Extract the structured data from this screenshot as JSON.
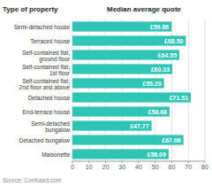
{
  "chart_data": {
    "type": "bar",
    "orientation": "horizontal",
    "y_label": "Type of property",
    "x_label": "Median average quote",
    "annotations": [
      "Source: Confused.com"
    ],
    "categories": [
      "Semi-detached house",
      "Terraced house",
      "Self-contained flat,\nground floor",
      "Self-contained flat,\n1st floor",
      "Self-contained flat,\n2nd floor and above",
      "Detached house",
      "End-terrace house",
      "Semi-detached\nbungalow",
      "Detached bungalow",
      "Maisonette"
    ],
    "values": [
      59.86,
      68.5,
      64.55,
      60.33,
      55.29,
      71.51,
      58.68,
      47.77,
      67.06,
      58.09
    ],
    "value_labels": [
      "£59.86",
      "£68.50",
      "£64.55",
      "£60.33",
      "£55.29",
      "£71.51",
      "£58.68",
      "£47.77",
      "£67.06",
      "£58.09"
    ],
    "data_labels": true,
    "color": "#2ec4b6",
    "xlim": [
      0,
      80
    ],
    "xticks": [
      0,
      10,
      20,
      30,
      40,
      50,
      60,
      70,
      80
    ],
    "grid": true
  }
}
